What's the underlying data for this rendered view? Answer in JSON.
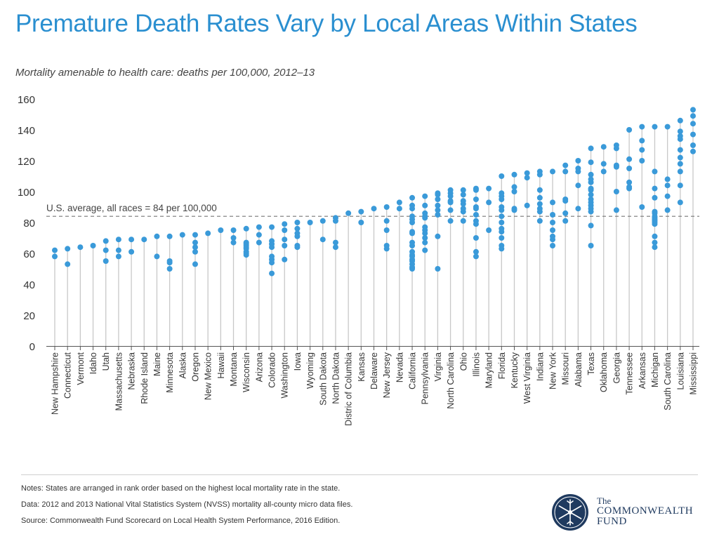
{
  "title": "Premature Death Rates Vary by Local Areas Within States",
  "subtitle": "Mortality amenable to health care: deaths per 100,000, 2012–13",
  "notes": [
    "Notes: States are arranged in rank order based on the highest local mortality rate in the state.",
    "Data: 2012 and 2013 National Vital Statistics System (NVSS) mortality all-county micro data files.",
    "Source: Commonwealth Fund Scorecard on Local Health System Performance, 2016 Edition."
  ],
  "logo": {
    "line1": "The",
    "line2": "COMMONWEALTH",
    "line3": "FUND"
  },
  "colors": {
    "title": "#2a8fd0",
    "dot": "#3a9ad9",
    "stem": "#c8c8c8",
    "reference": "#777777"
  },
  "chart_data": {
    "type": "scatter",
    "title": "Premature Death Rates Vary by Local Areas Within States",
    "ylabel": "",
    "xlabel": "",
    "ylim": [
      0,
      160
    ],
    "yticks": [
      0,
      20,
      40,
      60,
      80,
      100,
      120,
      140,
      160
    ],
    "grid": false,
    "reference_line": {
      "value": 84,
      "label": "U.S. average, all races = 84 per 100,000"
    },
    "categories": [
      "New Hampshire",
      "Connecticut",
      "Vermont",
      "Idaho",
      "Utah",
      "Massachusetts",
      "Nebraska",
      "Rhode Island",
      "Maine",
      "Minnesota",
      "Alaska",
      "Oregon",
      "New Mexico",
      "Hawaii",
      "Montana",
      "Wisconsin",
      "Arizona",
      "Colorado",
      "Washington",
      "Iowa",
      "Wyoming",
      "South Dakota",
      "North Dakota",
      "Distric of Columbia",
      "Kansas",
      "Delaware",
      "New Jersey",
      "Nevada",
      "California",
      "Pennsylvania",
      "Virginia",
      "North Carolina",
      "Ohio",
      "Illinois",
      "Maryland",
      "Florida",
      "Kentucky",
      "West Virginia",
      "Indiana",
      "New York",
      "Missouri",
      "Alabama",
      "Texas",
      "Oklahoma",
      "Georgia",
      "Tennessee",
      "Arkansas",
      "Michigan",
      "South Carolina",
      "Louisiana",
      "Mississippi"
    ],
    "values": [
      [
        62,
        58
      ],
      [
        63,
        53
      ],
      [
        64
      ],
      [
        65
      ],
      [
        68,
        62,
        55
      ],
      [
        69,
        62,
        58
      ],
      [
        69,
        61
      ],
      [
        69
      ],
      [
        71,
        58
      ],
      [
        71,
        55,
        54,
        50
      ],
      [
        72
      ],
      [
        72,
        67,
        64,
        61,
        53
      ],
      [
        73
      ],
      [
        75
      ],
      [
        75,
        70,
        67
      ],
      [
        76,
        67,
        66,
        65,
        64,
        63,
        61,
        60,
        59
      ],
      [
        77,
        72,
        67
      ],
      [
        77,
        68,
        66,
        64,
        58,
        56,
        54,
        47
      ],
      [
        79,
        75,
        69,
        65,
        56
      ],
      [
        80,
        76,
        73,
        71,
        65,
        64
      ],
      [
        80
      ],
      [
        81,
        69
      ],
      [
        83,
        81,
        67,
        64
      ],
      [
        86
      ],
      [
        87,
        80
      ],
      [
        89
      ],
      [
        90,
        81,
        75,
        65,
        63
      ],
      [
        93,
        89
      ],
      [
        96,
        91,
        89,
        84,
        82,
        80,
        74,
        73,
        67,
        65,
        61,
        59,
        58,
        56,
        55,
        53,
        51,
        50
      ],
      [
        97,
        91,
        86,
        84,
        83,
        77,
        75,
        73,
        70,
        67,
        62
      ],
      [
        99,
        98,
        95,
        91,
        88,
        85,
        71,
        50
      ],
      [
        101,
        99,
        97,
        94,
        93,
        88,
        81
      ],
      [
        101,
        98,
        94,
        92,
        89,
        87,
        81
      ],
      [
        102,
        101,
        95,
        90,
        89,
        85,
        81,
        79,
        70,
        61,
        58
      ],
      [
        102,
        93,
        75
      ],
      [
        110,
        99,
        97,
        95,
        90,
        88,
        84,
        80,
        76,
        74,
        70,
        65,
        63
      ],
      [
        111,
        103,
        100,
        89,
        88
      ],
      [
        112,
        109,
        91
      ],
      [
        113,
        111,
        101,
        96,
        92,
        89,
        87,
        81
      ],
      [
        113,
        93,
        85,
        80,
        75,
        71,
        69,
        65
      ],
      [
        117,
        113,
        95,
        94,
        86,
        81
      ],
      [
        120,
        115,
        113,
        104,
        89
      ],
      [
        128,
        119,
        111,
        108,
        106,
        102,
        101,
        98,
        95,
        93,
        91,
        89,
        87,
        78,
        65
      ],
      [
        129,
        118,
        113
      ],
      [
        130,
        128,
        117,
        116,
        100,
        88
      ],
      [
        140,
        121,
        115,
        106,
        103,
        102
      ],
      [
        142,
        133,
        127,
        120,
        90
      ],
      [
        142,
        113,
        102,
        96,
        87,
        86,
        84,
        83,
        82,
        81,
        80,
        79,
        71,
        67,
        64
      ],
      [
        142,
        108,
        104,
        97,
        88
      ],
      [
        146,
        139,
        136,
        134,
        127,
        122,
        118,
        113,
        104,
        93
      ],
      [
        153,
        149,
        144,
        137,
        130,
        126
      ]
    ]
  }
}
